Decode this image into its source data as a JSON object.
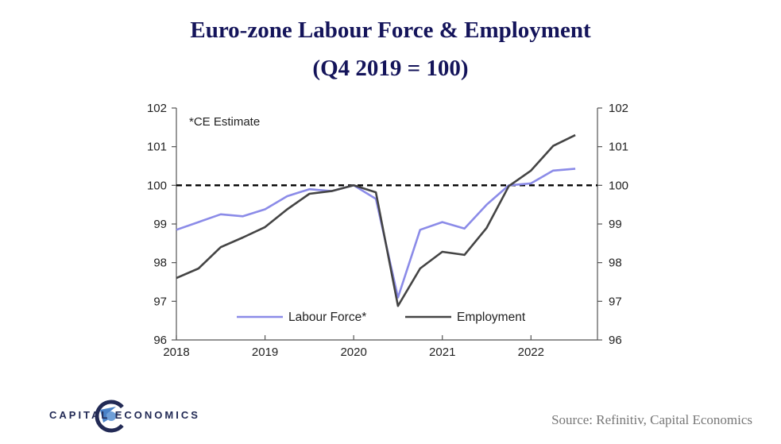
{
  "header": {
    "title": "Euro-zone Labour Force & Employment",
    "subtitle": "(Q4 2019 = 100)"
  },
  "footer": {
    "brand": "CAPITAL ECONOMICS",
    "source": "Source: Refinitiv, Capital Economics"
  },
  "colors": {
    "labour_force": "#8b8be8",
    "employment": "#444444",
    "reference_line": "#000000",
    "brand": "#222a55"
  },
  "chart_data": {
    "type": "line",
    "note": "*CE Estimate",
    "x_ticks": [
      "2018",
      "2019",
      "2020",
      "2021",
      "2022"
    ],
    "xlim": [
      2018,
      2022.75
    ],
    "ylim": [
      96,
      102
    ],
    "y_ticks": [
      "96",
      "97",
      "98",
      "99",
      "100",
      "101",
      "102"
    ],
    "y_ticks_right": [
      "96",
      "97",
      "98",
      "99",
      "100",
      "101",
      "102"
    ],
    "reference_line": 100,
    "legend": "bottom-center",
    "series": [
      {
        "name": "Labour Force*",
        "color": "#8b8be8",
        "x": [
          2018.0,
          2018.25,
          2018.5,
          2018.75,
          2019.0,
          2019.25,
          2019.5,
          2019.75,
          2020.0,
          2020.25,
          2020.5,
          2020.75,
          2021.0,
          2021.25,
          2021.5,
          2021.75,
          2022.0,
          2022.25,
          2022.5
        ],
        "values": [
          98.85,
          99.05,
          99.25,
          99.2,
          99.38,
          99.72,
          99.9,
          99.85,
          100.0,
          99.65,
          97.1,
          98.85,
          99.05,
          98.88,
          99.5,
          100.0,
          100.05,
          100.38,
          100.43
        ]
      },
      {
        "name": "Employment",
        "color": "#444444",
        "x": [
          2018.0,
          2018.25,
          2018.5,
          2018.75,
          2019.0,
          2019.25,
          2019.5,
          2019.75,
          2020.0,
          2020.25,
          2020.5,
          2020.75,
          2021.0,
          2021.25,
          2021.5,
          2021.75,
          2022.0,
          2022.25,
          2022.5
        ],
        "values": [
          97.6,
          97.85,
          98.4,
          98.65,
          98.92,
          99.38,
          99.78,
          99.85,
          100.0,
          99.82,
          96.88,
          97.85,
          98.28,
          98.2,
          98.9,
          99.98,
          100.38,
          101.02,
          101.3
        ]
      }
    ]
  }
}
